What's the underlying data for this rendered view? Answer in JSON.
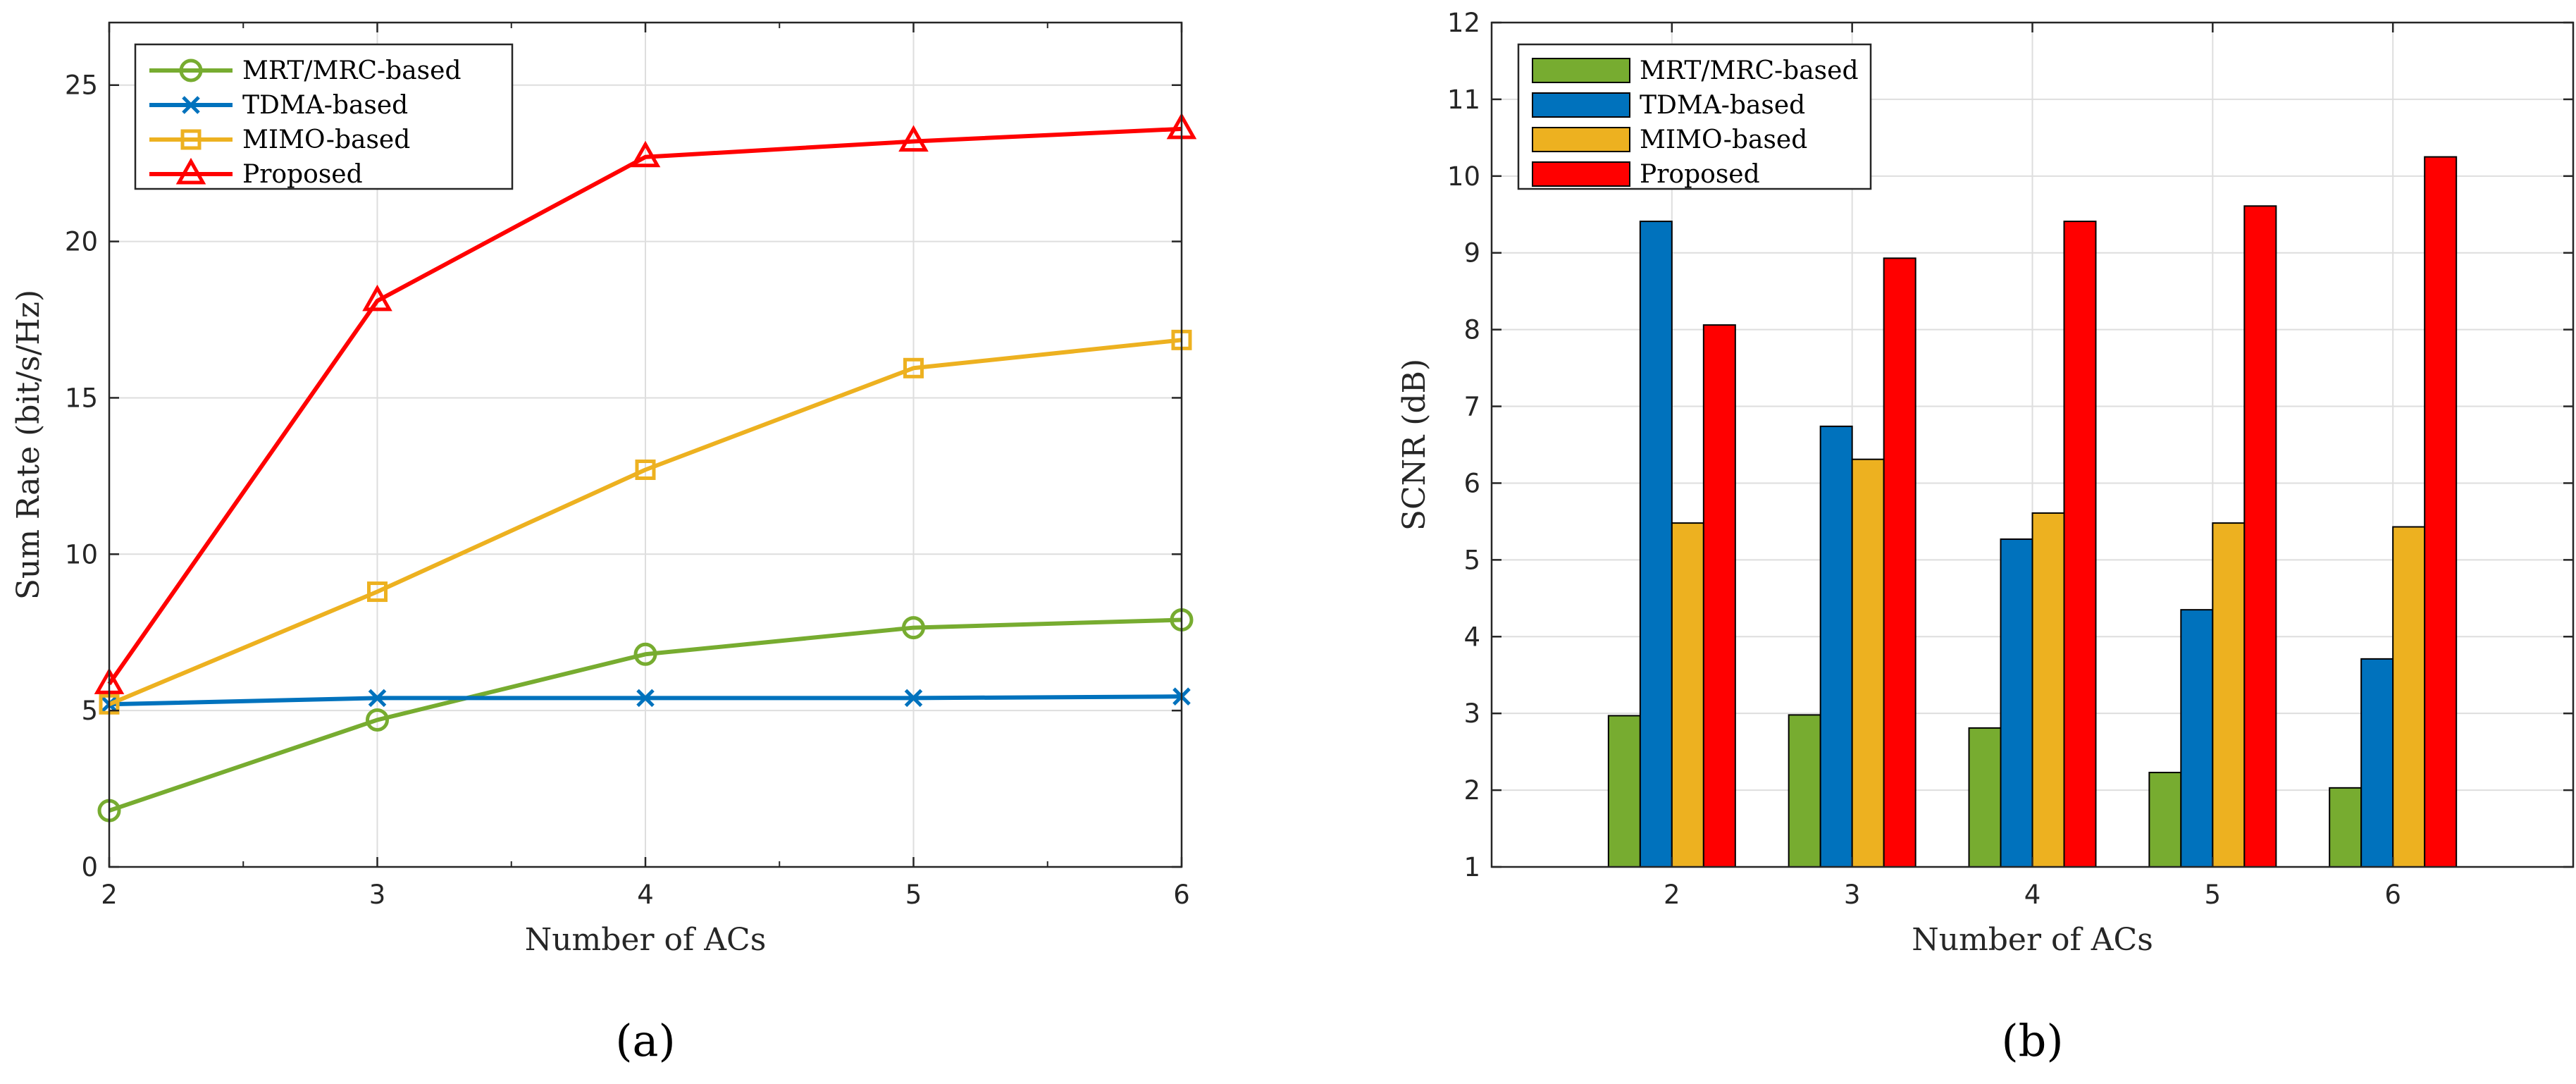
{
  "chart_data": [
    {
      "type": "line",
      "panel_label": "a",
      "x": [
        2,
        3,
        4,
        5,
        6
      ],
      "xticks": [
        "2",
        "3",
        "4",
        "5",
        "6"
      ],
      "yticks": [
        "0",
        "5",
        "10",
        "15",
        "20",
        "25"
      ],
      "xlim": [
        2,
        6
      ],
      "ylim": [
        0,
        27
      ],
      "xlabel": "Number of ACs",
      "ylabel": "Sum Rate (bit/s/Hz)",
      "grid": true,
      "legend": "top-left",
      "series": [
        {
          "name": "MRT/MRC-based",
          "color": "#77ac30",
          "marker": "circle",
          "values": [
            1.8,
            4.7,
            6.8,
            7.65,
            7.9
          ]
        },
        {
          "name": "TDMA-based",
          "color": "#0072bd",
          "marker": "x",
          "values": [
            5.2,
            5.4,
            5.4,
            5.4,
            5.45
          ]
        },
        {
          "name": "MIMO-based",
          "color": "#edb120",
          "marker": "square",
          "values": [
            5.2,
            8.8,
            12.7,
            15.95,
            16.85
          ]
        },
        {
          "name": "Proposed",
          "color": "#ff0000",
          "marker": "triangle",
          "values": [
            5.85,
            18.1,
            22.7,
            23.2,
            23.6
          ]
        }
      ]
    },
    {
      "type": "bar",
      "panel_label": "b",
      "categories": [
        "2",
        "3",
        "4",
        "5",
        "6"
      ],
      "yticks": [
        "1",
        "2",
        "3",
        "4",
        "5",
        "6",
        "7",
        "8",
        "9",
        "10",
        "11",
        "12"
      ],
      "ylim": [
        1,
        12
      ],
      "xlabel": "Number of ACs",
      "ylabel": "SCNR (dB)",
      "grid": true,
      "legend": "top-left",
      "series": [
        {
          "name": "MRT/MRC-based",
          "color": "#77ac30",
          "values": [
            2.97,
            2.98,
            2.81,
            2.23,
            2.03
          ]
        },
        {
          "name": "TDMA-based",
          "color": "#0072bd",
          "values": [
            9.41,
            6.74,
            5.27,
            4.35,
            3.71
          ]
        },
        {
          "name": "MIMO-based",
          "color": "#edb120",
          "values": [
            5.48,
            6.31,
            5.61,
            5.48,
            5.43
          ]
        },
        {
          "name": "Proposed",
          "color": "#ff0000",
          "values": [
            8.06,
            8.93,
            9.41,
            9.61,
            10.25
          ]
        }
      ]
    }
  ]
}
